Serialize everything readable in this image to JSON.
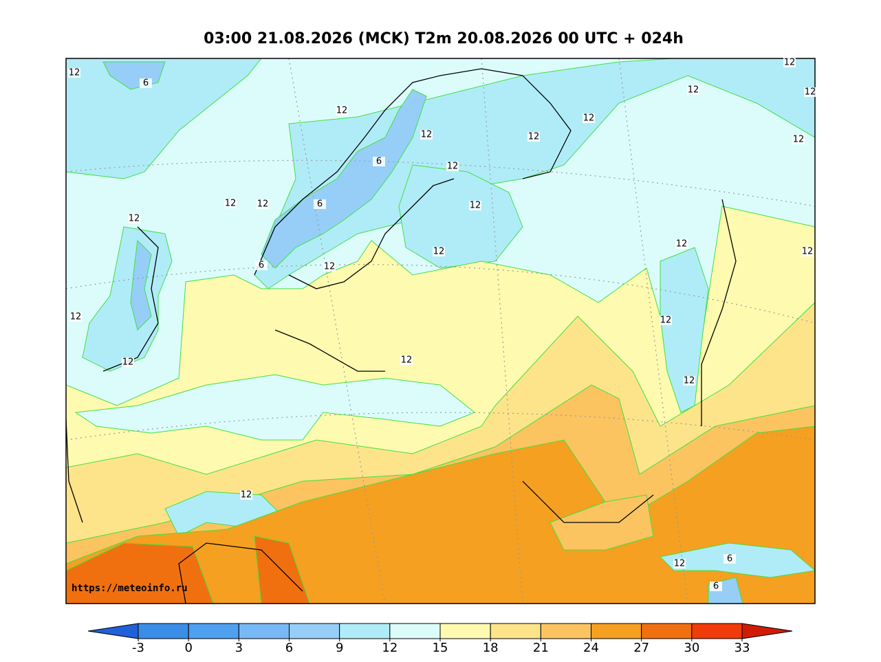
{
  "title": "03:00 21.08.2026 (MCK) T2m 20.08.2026 00 UTC + 024h",
  "watermark": "https://meteoinfo.ru",
  "colorbar": {
    "ticks": [
      -3,
      0,
      3,
      6,
      9,
      12,
      15,
      18,
      21,
      24,
      27,
      30,
      33
    ],
    "colors": [
      "#3a8ee8",
      "#4fa0f0",
      "#78b8f5",
      "#96cef8",
      "#b0ecf7",
      "#dcfcfc",
      "#fefab0",
      "#fde48a",
      "#fbc460",
      "#f5a020",
      "#f07010",
      "#f03c0a"
    ],
    "under_color": "#2060d8",
    "over_color": "#d01c04"
  },
  "contour_labels": [
    12,
    6,
    12,
    12,
    12,
    12,
    12,
    12,
    12,
    12,
    12,
    6,
    12,
    12,
    6,
    12,
    12,
    6,
    12,
    12,
    12,
    12,
    12,
    12,
    12,
    12,
    12,
    12,
    12,
    6,
    6
  ]
}
